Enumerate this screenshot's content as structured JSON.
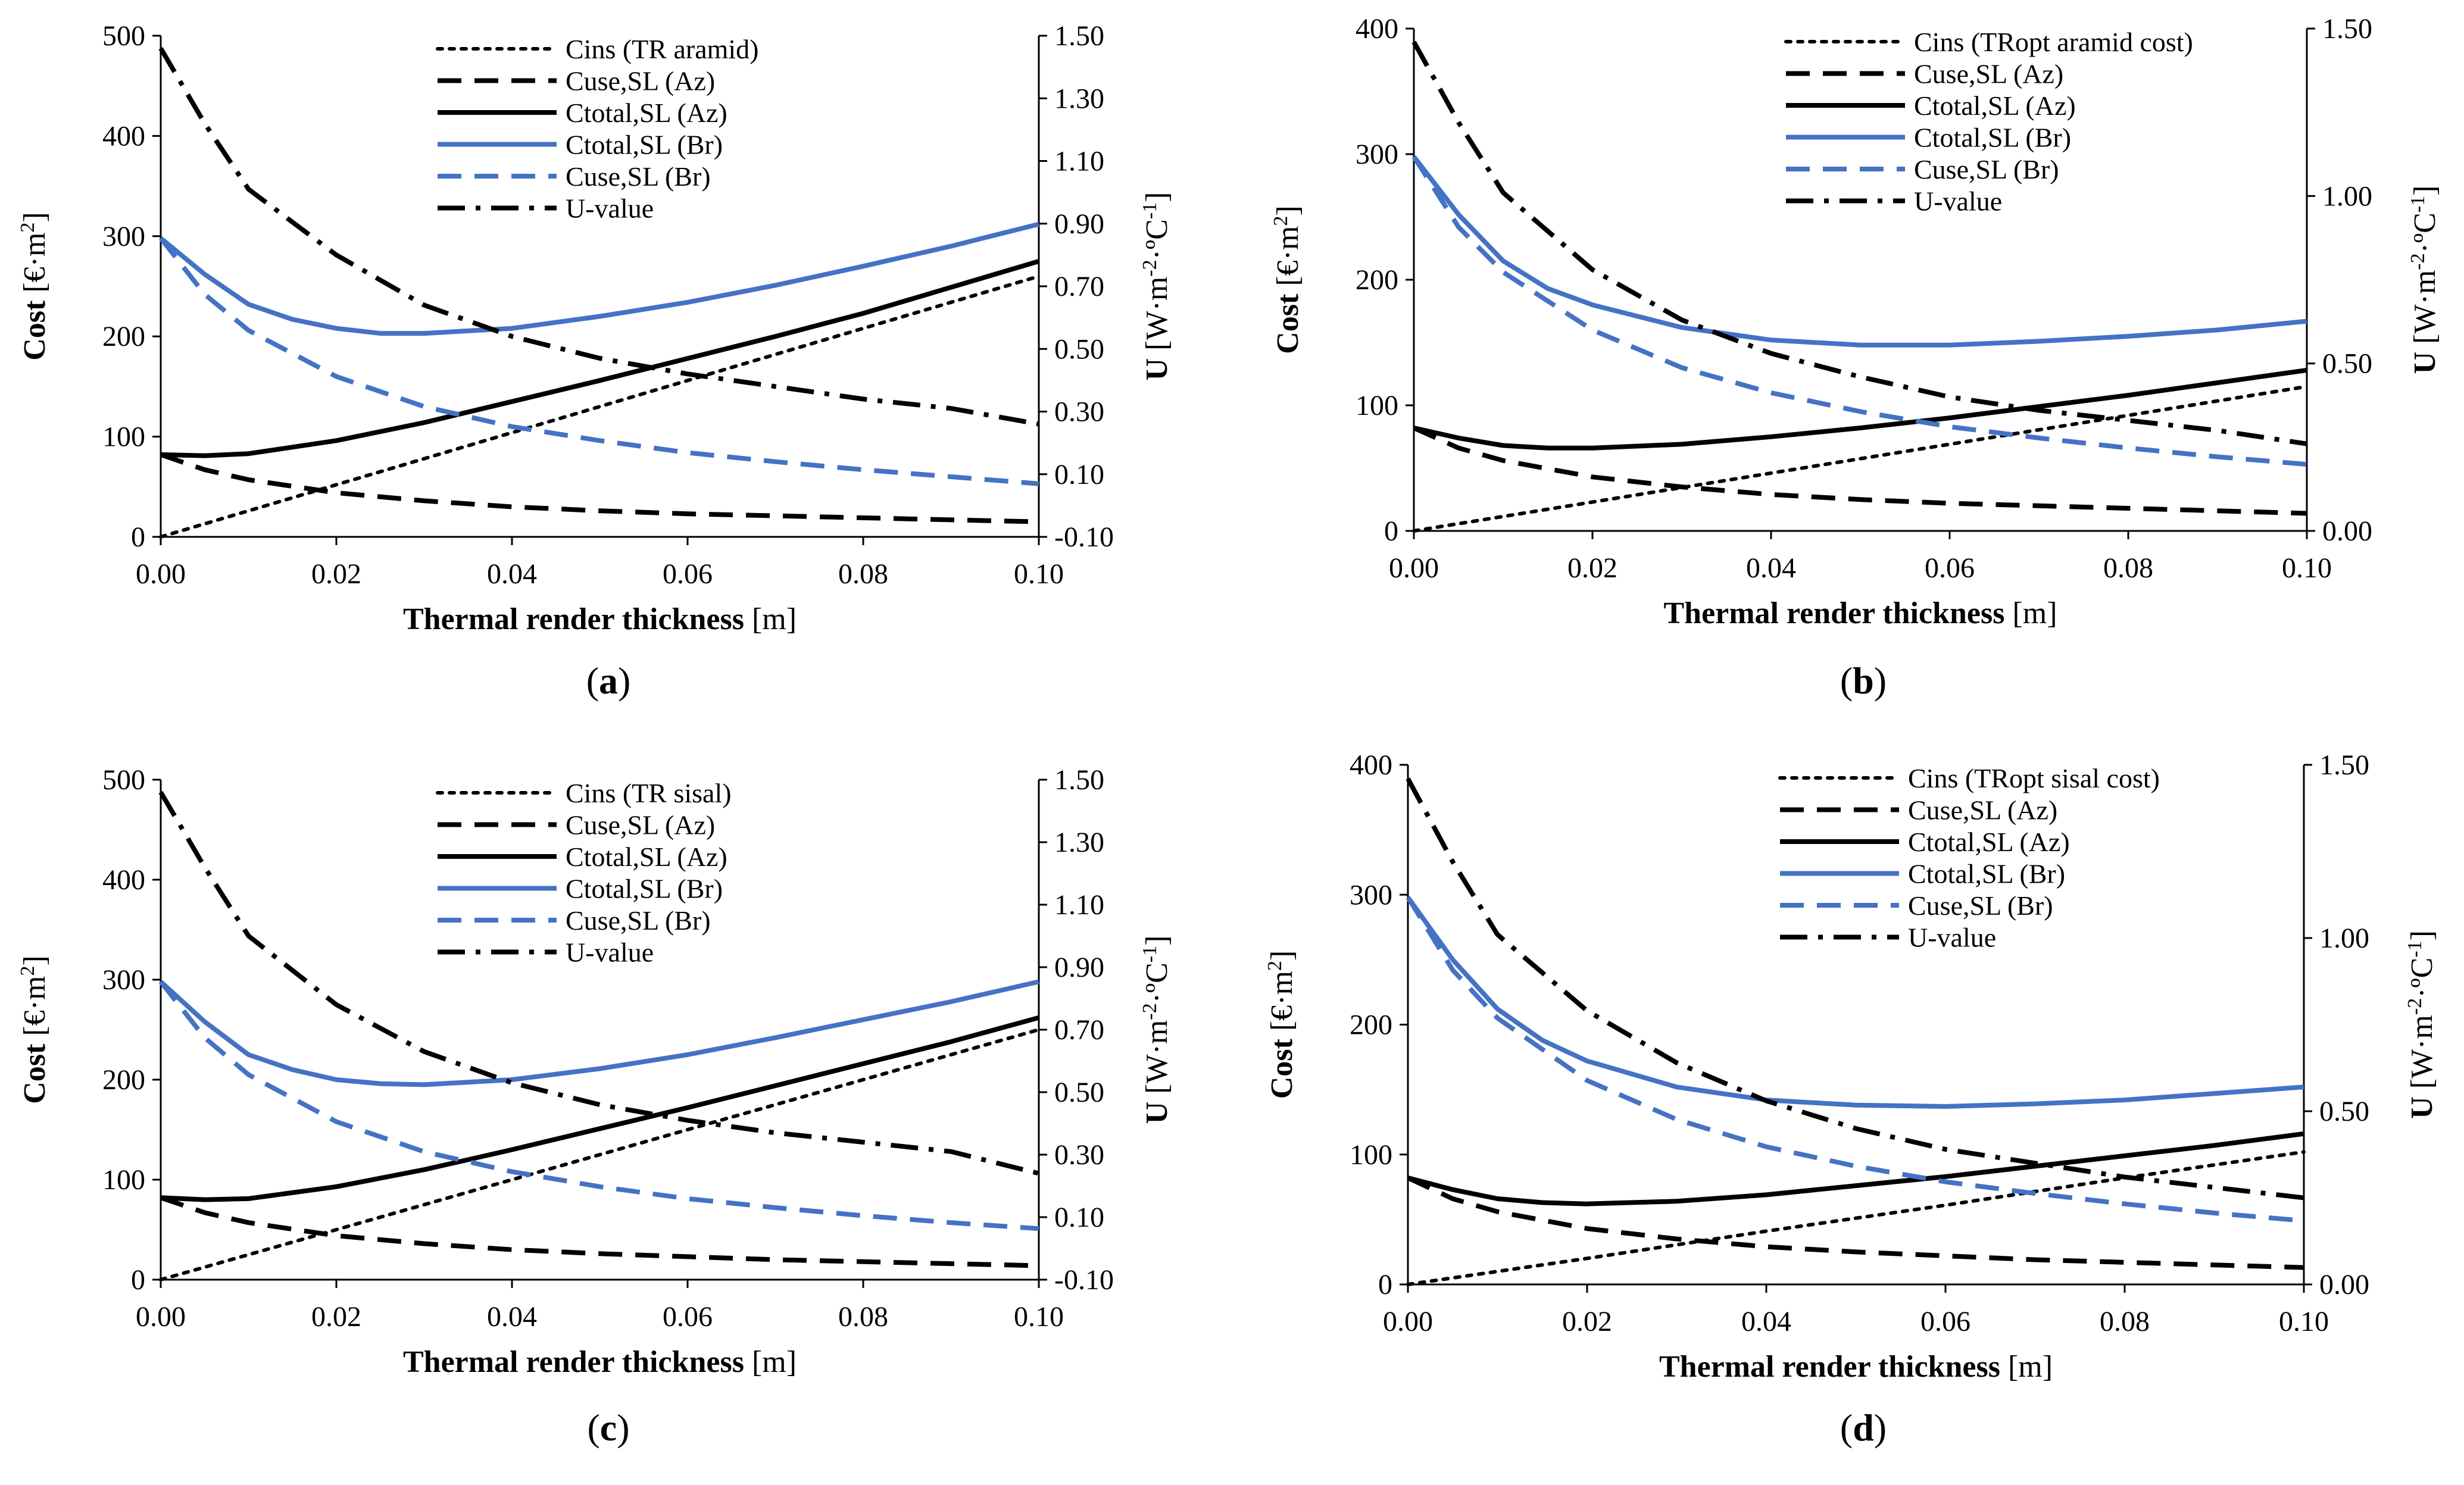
{
  "colors": {
    "black": "#000000",
    "blue": "#4472C4"
  },
  "styles": {
    "dotted": "8 12",
    "dashed": "40 22",
    "solid": "",
    "dashdot": "46 18 8 18"
  },
  "axes": {
    "xlabel_bold": "Thermal render thickness",
    "xlabel_unit": " [m]",
    "ylabel_bold": "Cost",
    "ylabel_unit": " [€·m",
    "ylabel_sup": "2",
    "ylabel_end": "]",
    "y2label_bold": "U",
    "y2label_unit": " [W·m",
    "y2label_sup1": "-2",
    "y2label_mid": "·ºC",
    "y2label_sup2": "-1",
    "y2label_end": "]"
  },
  "chart_data": [
    {
      "type": "line",
      "panel_label": "(a)",
      "label_bold": "a",
      "x_ticks": [
        "0.00",
        "0.02",
        "0.04",
        "0.06",
        "0.08",
        "0.10"
      ],
      "xlim": [
        0,
        0.1
      ],
      "ylim": [
        0,
        500
      ],
      "y_ticks": [
        "0",
        "100",
        "200",
        "300",
        "400",
        "500"
      ],
      "y2lim": [
        -0.1,
        1.5
      ],
      "y2_ticks": [
        "-0.10",
        "0.10",
        "0.30",
        "0.50",
        "0.70",
        "0.90",
        "1.10",
        "1.30",
        "1.50"
      ],
      "legend": "top-center",
      "series": [
        {
          "name": "Cins (TR aramid)",
          "style": "dotted",
          "color": "black",
          "axis": "y",
          "x": [
            0,
            0.02,
            0.04,
            0.06,
            0.08,
            0.1
          ],
          "values": [
            0,
            52,
            104,
            156,
            208,
            260
          ]
        },
        {
          "name": "Cuse,SL (Az)",
          "style": "dashed",
          "color": "black",
          "axis": "y",
          "x": [
            0,
            0.005,
            0.01,
            0.02,
            0.03,
            0.04,
            0.05,
            0.06,
            0.07,
            0.08,
            0.09,
            0.1
          ],
          "values": [
            82,
            67,
            57,
            44,
            36,
            30,
            26,
            23,
            21,
            19,
            17,
            15
          ]
        },
        {
          "name": "Ctotal,SL (Az)",
          "style": "solid",
          "color": "black",
          "axis": "y",
          "x": [
            0,
            0.005,
            0.01,
            0.02,
            0.03,
            0.04,
            0.05,
            0.06,
            0.07,
            0.08,
            0.09,
            0.1
          ],
          "values": [
            82,
            81,
            83,
            96,
            114,
            135,
            156,
            178,
            200,
            223,
            249,
            275
          ]
        },
        {
          "name": "Ctotal,SL (Br)",
          "style": "solid",
          "color": "blue",
          "axis": "y",
          "x": [
            0,
            0.005,
            0.01,
            0.015,
            0.02,
            0.025,
            0.03,
            0.04,
            0.05,
            0.06,
            0.07,
            0.08,
            0.09,
            0.1
          ],
          "values": [
            298,
            262,
            232,
            217,
            208,
            203,
            203,
            208,
            220,
            234,
            251,
            270,
            290,
            312
          ]
        },
        {
          "name": "Cuse,SL (Br)",
          "style": "dashed",
          "color": "blue",
          "axis": "y",
          "x": [
            0,
            0.005,
            0.01,
            0.02,
            0.03,
            0.04,
            0.05,
            0.06,
            0.07,
            0.08,
            0.09,
            0.1
          ],
          "values": [
            298,
            242,
            206,
            160,
            130,
            110,
            96,
            84,
            75,
            67,
            60,
            53
          ]
        },
        {
          "name": "U-value",
          "style": "dashdot",
          "color": "black",
          "axis": "y2",
          "x": [
            0,
            0.005,
            0.01,
            0.02,
            0.03,
            0.04,
            0.05,
            0.06,
            0.07,
            0.08,
            0.09,
            0.1
          ],
          "values": [
            1.46,
            1.22,
            1.01,
            0.8,
            0.64,
            0.54,
            0.47,
            0.42,
            0.38,
            0.34,
            0.31,
            0.26
          ]
        }
      ]
    },
    {
      "type": "line",
      "panel_label": "(b)",
      "label_bold": "b",
      "x_ticks": [
        "0.00",
        "0.02",
        "0.04",
        "0.06",
        "0.08",
        "0.10"
      ],
      "xlim": [
        0,
        0.1
      ],
      "ylim": [
        0,
        400
      ],
      "y_ticks": [
        "0",
        "100",
        "200",
        "300",
        "400"
      ],
      "y2lim": [
        0,
        1.5
      ],
      "y2_ticks": [
        "0.00",
        "0.50",
        "1.00",
        "1.50"
      ],
      "legend": "top-center",
      "series": [
        {
          "name": "Cins (TRopt aramid cost)",
          "style": "dotted",
          "color": "black",
          "axis": "y",
          "x": [
            0,
            0.02,
            0.04,
            0.06,
            0.08,
            0.1
          ],
          "values": [
            0,
            23,
            46,
            69,
            92,
            115
          ]
        },
        {
          "name": "Cuse,SL (Az)",
          "style": "dashed",
          "color": "black",
          "axis": "y",
          "x": [
            0,
            0.005,
            0.01,
            0.02,
            0.03,
            0.04,
            0.05,
            0.06,
            0.07,
            0.08,
            0.09,
            0.1
          ],
          "values": [
            82,
            66,
            56,
            43,
            35,
            29,
            25,
            22,
            20,
            18,
            16,
            14
          ]
        },
        {
          "name": "Ctotal,SL (Az)",
          "style": "solid",
          "color": "black",
          "axis": "y",
          "x": [
            0,
            0.005,
            0.01,
            0.015,
            0.02,
            0.03,
            0.04,
            0.05,
            0.06,
            0.07,
            0.08,
            0.09,
            0.1
          ],
          "values": [
            82,
            74,
            68,
            66,
            66,
            69,
            75,
            82,
            90,
            99,
            108,
            118,
            128
          ]
        },
        {
          "name": "Ctotal,SL (Br)",
          "style": "solid",
          "color": "blue",
          "axis": "y",
          "x": [
            0,
            0.005,
            0.01,
            0.015,
            0.02,
            0.03,
            0.04,
            0.05,
            0.06,
            0.07,
            0.08,
            0.09,
            0.1
          ],
          "values": [
            298,
            252,
            215,
            193,
            180,
            162,
            152,
            148,
            148,
            151,
            155,
            160,
            167
          ]
        },
        {
          "name": "Cuse,SL (Br)",
          "style": "dashed",
          "color": "blue",
          "axis": "y",
          "x": [
            0,
            0.005,
            0.01,
            0.02,
            0.03,
            0.04,
            0.05,
            0.06,
            0.07,
            0.08,
            0.09,
            0.1
          ],
          "values": [
            298,
            242,
            206,
            160,
            130,
            110,
            95,
            83,
            74,
            66,
            59,
            53
          ]
        },
        {
          "name": "U-value",
          "style": "dashdot",
          "color": "black",
          "axis": "y2",
          "x": [
            0,
            0.005,
            0.01,
            0.02,
            0.03,
            0.04,
            0.05,
            0.06,
            0.07,
            0.08,
            0.09,
            0.1
          ],
          "values": [
            1.46,
            1.22,
            1.01,
            0.78,
            0.63,
            0.53,
            0.46,
            0.4,
            0.36,
            0.33,
            0.3,
            0.26
          ]
        }
      ]
    },
    {
      "type": "line",
      "panel_label": "(c)",
      "label_bold": "c",
      "x_ticks": [
        "0.00",
        "0.02",
        "0.04",
        "0.06",
        "0.08",
        "0.10"
      ],
      "xlim": [
        0,
        0.1
      ],
      "ylim": [
        0,
        500
      ],
      "y_ticks": [
        "0",
        "100",
        "200",
        "300",
        "400",
        "500"
      ],
      "y2lim": [
        -0.1,
        1.5
      ],
      "y2_ticks": [
        "-0.10",
        "0.10",
        "0.30",
        "0.50",
        "0.70",
        "0.90",
        "1.10",
        "1.30",
        "1.50"
      ],
      "legend": "top-center",
      "series": [
        {
          "name": "Cins (TR sisal)",
          "style": "dotted",
          "color": "black",
          "axis": "y",
          "x": [
            0,
            0.02,
            0.04,
            0.06,
            0.08,
            0.1
          ],
          "values": [
            0,
            50,
            100,
            150,
            200,
            250
          ]
        },
        {
          "name": "Cuse,SL (Az)",
          "style": "dashed",
          "color": "black",
          "axis": "y",
          "x": [
            0,
            0.005,
            0.01,
            0.02,
            0.03,
            0.04,
            0.05,
            0.06,
            0.07,
            0.08,
            0.09,
            0.1
          ],
          "values": [
            82,
            67,
            57,
            44,
            36,
            30,
            26,
            23,
            20,
            18,
            16,
            14
          ]
        },
        {
          "name": "Ctotal,SL (Az)",
          "style": "solid",
          "color": "black",
          "axis": "y",
          "x": [
            0,
            0.005,
            0.01,
            0.02,
            0.03,
            0.04,
            0.05,
            0.06,
            0.07,
            0.08,
            0.09,
            0.1
          ],
          "values": [
            82,
            80,
            81,
            93,
            110,
            130,
            151,
            172,
            194,
            216,
            238,
            262
          ]
        },
        {
          "name": "Ctotal,SL (Br)",
          "style": "solid",
          "color": "blue",
          "axis": "y",
          "x": [
            0,
            0.005,
            0.01,
            0.015,
            0.02,
            0.025,
            0.03,
            0.04,
            0.05,
            0.06,
            0.07,
            0.08,
            0.09,
            0.1
          ],
          "values": [
            298,
            258,
            225,
            210,
            200,
            196,
            195,
            200,
            211,
            225,
            242,
            260,
            278,
            298
          ]
        },
        {
          "name": "Cuse,SL (Br)",
          "style": "dashed",
          "color": "blue",
          "axis": "y",
          "x": [
            0,
            0.005,
            0.01,
            0.02,
            0.03,
            0.04,
            0.05,
            0.06,
            0.07,
            0.08,
            0.09,
            0.1
          ],
          "values": [
            298,
            242,
            205,
            158,
            128,
            108,
            93,
            81,
            72,
            64,
            57,
            51
          ]
        },
        {
          "name": "U-value",
          "style": "dashdot",
          "color": "black",
          "axis": "y2",
          "x": [
            0,
            0.005,
            0.01,
            0.02,
            0.03,
            0.04,
            0.05,
            0.06,
            0.07,
            0.08,
            0.09,
            0.1
          ],
          "values": [
            1.46,
            1.22,
            1.0,
            0.78,
            0.63,
            0.53,
            0.46,
            0.41,
            0.37,
            0.34,
            0.31,
            0.24
          ]
        }
      ]
    },
    {
      "type": "line",
      "panel_label": "(d)",
      "label_bold": "d",
      "x_ticks": [
        "0.00",
        "0.02",
        "0.04",
        "0.06",
        "0.08",
        "0.10"
      ],
      "xlim": [
        0,
        0.1
      ],
      "ylim": [
        0,
        400
      ],
      "y_ticks": [
        "0",
        "100",
        "200",
        "300",
        "400"
      ],
      "y2lim": [
        0,
        1.5
      ],
      "y2_ticks": [
        "0.00",
        "0.50",
        "1.00",
        "1.50"
      ],
      "legend": "top-center",
      "series": [
        {
          "name": "Cins (TRopt sisal cost)",
          "style": "dotted",
          "color": "black",
          "axis": "y",
          "x": [
            0,
            0.02,
            0.04,
            0.06,
            0.08,
            0.1
          ],
          "values": [
            0,
            20,
            41,
            61,
            82,
            102
          ]
        },
        {
          "name": "Cuse,SL (Az)",
          "style": "dashed",
          "color": "black",
          "axis": "y",
          "x": [
            0,
            0.005,
            0.01,
            0.02,
            0.03,
            0.04,
            0.05,
            0.06,
            0.07,
            0.08,
            0.09,
            0.1
          ],
          "values": [
            82,
            66,
            56,
            43,
            35,
            29,
            25,
            22,
            19,
            17,
            15,
            13
          ]
        },
        {
          "name": "Ctotal,SL (Az)",
          "style": "solid",
          "color": "black",
          "axis": "y",
          "x": [
            0,
            0.005,
            0.01,
            0.015,
            0.02,
            0.03,
            0.04,
            0.05,
            0.06,
            0.07,
            0.08,
            0.09,
            0.1
          ],
          "values": [
            82,
            73,
            66,
            63,
            62,
            64,
            69,
            76,
            83,
            91,
            99,
            107,
            116
          ]
        },
        {
          "name": "Ctotal,SL (Br)",
          "style": "solid",
          "color": "blue",
          "axis": "y",
          "x": [
            0,
            0.005,
            0.01,
            0.015,
            0.02,
            0.03,
            0.04,
            0.05,
            0.06,
            0.07,
            0.08,
            0.09,
            0.1
          ],
          "values": [
            298,
            250,
            212,
            188,
            172,
            152,
            142,
            138,
            137,
            139,
            142,
            147,
            152
          ]
        },
        {
          "name": "Cuse,SL (Br)",
          "style": "dashed",
          "color": "blue",
          "axis": "y",
          "x": [
            0,
            0.005,
            0.01,
            0.02,
            0.03,
            0.04,
            0.05,
            0.06,
            0.07,
            0.08,
            0.09,
            0.1
          ],
          "values": [
            298,
            242,
            205,
            157,
            127,
            106,
            91,
            79,
            70,
            62,
            55,
            49
          ]
        },
        {
          "name": "U-value",
          "style": "dashdot",
          "color": "black",
          "axis": "y2",
          "x": [
            0,
            0.005,
            0.01,
            0.02,
            0.03,
            0.04,
            0.05,
            0.06,
            0.07,
            0.08,
            0.09,
            0.1
          ],
          "values": [
            1.46,
            1.22,
            1.01,
            0.79,
            0.64,
            0.53,
            0.45,
            0.39,
            0.35,
            0.31,
            0.28,
            0.25
          ]
        }
      ]
    }
  ]
}
